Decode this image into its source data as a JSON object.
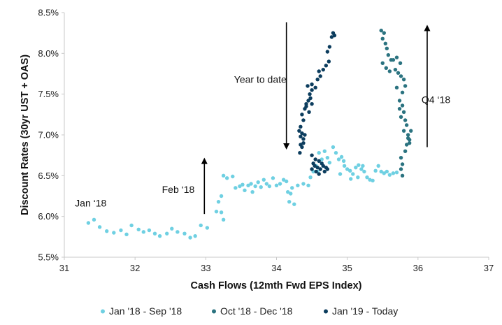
{
  "chart_data": {
    "type": "scatter",
    "title": "",
    "xlabel": "Cash Flows (12mth Fwd EPS Index)",
    "ylabel": "Discount Rates (30yr UST + OAS)",
    "xlim": [
      31,
      37
    ],
    "ylim": [
      5.5,
      8.5
    ],
    "x_ticks": [
      31,
      32,
      33,
      34,
      35,
      36,
      37
    ],
    "x_tick_labels": [
      "31",
      "32",
      "33",
      "34",
      "35",
      "36",
      "37"
    ],
    "y_ticks": [
      5.5,
      6.0,
      6.5,
      7.0,
      7.5,
      8.0,
      8.5
    ],
    "y_tick_labels": [
      "5.5%",
      "6.0%",
      "6.5%",
      "7.0%",
      "7.5%",
      "8.0%",
      "8.5%"
    ],
    "grid": false,
    "legend_position": "bottom",
    "series": [
      {
        "name": "Jan '18 - Sep '18",
        "color": "#6fd0e2",
        "points": [
          [
            31.34,
            5.92
          ],
          [
            31.42,
            5.96
          ],
          [
            31.5,
            5.87
          ],
          [
            31.6,
            5.82
          ],
          [
            31.7,
            5.8
          ],
          [
            31.8,
            5.83
          ],
          [
            31.88,
            5.78
          ],
          [
            31.95,
            5.89
          ],
          [
            32.05,
            5.84
          ],
          [
            32.12,
            5.81
          ],
          [
            32.2,
            5.83
          ],
          [
            32.28,
            5.79
          ],
          [
            32.35,
            5.76
          ],
          [
            32.45,
            5.79
          ],
          [
            32.52,
            5.85
          ],
          [
            32.6,
            5.81
          ],
          [
            32.7,
            5.79
          ],
          [
            32.78,
            5.74
          ],
          [
            32.85,
            5.76
          ],
          [
            32.93,
            5.89
          ],
          [
            33.02,
            5.86
          ],
          [
            33.15,
            6.06
          ],
          [
            33.22,
            6.05
          ],
          [
            33.25,
            5.96
          ],
          [
            33.18,
            6.18
          ],
          [
            33.22,
            6.25
          ],
          [
            33.25,
            6.5
          ],
          [
            33.3,
            6.47
          ],
          [
            33.38,
            6.49
          ],
          [
            33.42,
            6.35
          ],
          [
            33.48,
            6.37
          ],
          [
            33.52,
            6.39
          ],
          [
            33.55,
            6.32
          ],
          [
            33.6,
            6.38
          ],
          [
            33.64,
            6.4
          ],
          [
            33.66,
            6.3
          ],
          [
            33.7,
            6.37
          ],
          [
            33.74,
            6.42
          ],
          [
            33.78,
            6.36
          ],
          [
            33.82,
            6.45
          ],
          [
            33.86,
            6.4
          ],
          [
            33.9,
            6.37
          ],
          [
            33.95,
            6.47
          ],
          [
            34.0,
            6.38
          ],
          [
            34.05,
            6.4
          ],
          [
            34.1,
            6.45
          ],
          [
            34.14,
            6.43
          ],
          [
            34.16,
            6.3
          ],
          [
            34.18,
            6.18
          ],
          [
            34.2,
            6.28
          ],
          [
            34.22,
            6.35
          ],
          [
            34.25,
            6.15
          ],
          [
            34.3,
            6.38
          ],
          [
            34.38,
            6.4
          ],
          [
            34.45,
            6.38
          ],
          [
            34.48,
            6.48
          ],
          [
            34.52,
            6.55
          ],
          [
            34.56,
            6.62
          ],
          [
            34.6,
            6.78
          ],
          [
            34.64,
            6.7
          ],
          [
            34.68,
            6.8
          ],
          [
            34.72,
            6.72
          ],
          [
            34.75,
            6.66
          ],
          [
            34.8,
            6.85
          ],
          [
            34.84,
            6.78
          ],
          [
            34.88,
            6.7
          ],
          [
            34.92,
            6.73
          ],
          [
            34.96,
            6.62
          ],
          [
            35.0,
            6.58
          ],
          [
            35.04,
            6.56
          ],
          [
            35.08,
            6.52
          ],
          [
            35.12,
            6.6
          ],
          [
            35.16,
            6.63
          ],
          [
            35.2,
            6.58
          ],
          [
            35.24,
            6.55
          ],
          [
            35.28,
            6.48
          ],
          [
            35.32,
            6.45
          ],
          [
            35.36,
            6.44
          ],
          [
            35.4,
            6.56
          ],
          [
            35.44,
            6.62
          ],
          [
            35.48,
            6.55
          ],
          [
            35.52,
            6.53
          ],
          [
            35.56,
            6.55
          ],
          [
            35.6,
            6.51
          ],
          [
            35.65,
            6.53
          ],
          [
            35.7,
            6.54
          ],
          [
            34.9,
            6.52
          ],
          [
            34.95,
            6.68
          ],
          [
            35.05,
            6.46
          ],
          [
            35.15,
            6.48
          ],
          [
            35.22,
            6.62
          ],
          [
            34.58,
            6.55
          ]
        ]
      },
      {
        "name": "Oct '18 - Dec '18",
        "color": "#2b7380",
        "points": [
          [
            35.48,
            8.28
          ],
          [
            35.52,
            8.25
          ],
          [
            35.5,
            8.18
          ],
          [
            35.54,
            8.12
          ],
          [
            35.56,
            8.06
          ],
          [
            35.58,
            7.98
          ],
          [
            35.62,
            7.92
          ],
          [
            35.5,
            7.88
          ],
          [
            35.55,
            7.82
          ],
          [
            35.6,
            7.78
          ],
          [
            35.65,
            7.92
          ],
          [
            35.7,
            7.95
          ],
          [
            35.68,
            7.8
          ],
          [
            35.75,
            7.88
          ],
          [
            35.72,
            7.76
          ],
          [
            35.76,
            7.72
          ],
          [
            35.8,
            7.68
          ],
          [
            35.82,
            7.6
          ],
          [
            35.78,
            7.52
          ],
          [
            35.74,
            7.42
          ],
          [
            35.78,
            7.36
          ],
          [
            35.8,
            7.28
          ],
          [
            35.76,
            7.22
          ],
          [
            35.82,
            7.18
          ],
          [
            35.84,
            7.12
          ],
          [
            35.8,
            7.05
          ],
          [
            35.86,
            7.0
          ],
          [
            35.88,
            6.94
          ],
          [
            35.84,
            6.88
          ],
          [
            35.82,
            6.8
          ],
          [
            35.76,
            6.72
          ],
          [
            35.78,
            6.64
          ],
          [
            35.76,
            6.58
          ],
          [
            35.78,
            6.5
          ],
          [
            35.9,
            7.05
          ],
          [
            35.88,
            6.9
          ],
          [
            35.86,
            6.96
          ],
          [
            35.74,
            7.32
          ],
          [
            35.7,
            7.58
          ]
        ]
      },
      {
        "name": "Jan '19 - Today",
        "color": "#0c3d5e",
        "points": [
          [
            34.32,
            7.05
          ],
          [
            34.34,
            6.98
          ],
          [
            34.36,
            7.02
          ],
          [
            34.38,
            6.95
          ],
          [
            34.34,
            6.88
          ],
          [
            34.36,
            6.85
          ],
          [
            34.38,
            6.9
          ],
          [
            34.33,
            6.78
          ],
          [
            34.4,
            7.0
          ],
          [
            34.34,
            7.1
          ],
          [
            34.38,
            7.18
          ],
          [
            34.36,
            7.25
          ],
          [
            34.4,
            7.32
          ],
          [
            34.42,
            7.38
          ],
          [
            34.45,
            7.42
          ],
          [
            34.48,
            7.45
          ],
          [
            34.42,
            7.35
          ],
          [
            34.5,
            7.38
          ],
          [
            34.47,
            7.5
          ],
          [
            34.44,
            7.6
          ],
          [
            34.5,
            7.62
          ],
          [
            34.55,
            7.58
          ],
          [
            34.58,
            7.68
          ],
          [
            34.62,
            7.72
          ],
          [
            34.6,
            7.78
          ],
          [
            34.66,
            7.8
          ],
          [
            34.7,
            7.85
          ],
          [
            34.74,
            7.9
          ],
          [
            34.72,
            8.02
          ],
          [
            34.75,
            8.08
          ],
          [
            34.78,
            8.2
          ],
          [
            34.8,
            8.25
          ],
          [
            34.82,
            8.22
          ],
          [
            34.5,
            6.58
          ],
          [
            34.52,
            6.65
          ],
          [
            34.54,
            6.62
          ],
          [
            34.56,
            6.55
          ],
          [
            34.58,
            6.6
          ],
          [
            34.6,
            6.52
          ],
          [
            34.62,
            6.58
          ],
          [
            34.64,
            6.65
          ],
          [
            34.66,
            6.62
          ],
          [
            34.68,
            6.55
          ],
          [
            34.7,
            6.6
          ],
          [
            34.72,
            6.58
          ],
          [
            34.55,
            6.7
          ],
          [
            34.6,
            6.68
          ],
          [
            34.5,
            6.75
          ],
          [
            34.46,
            7.28
          ],
          [
            34.5,
            7.55
          ]
        ]
      }
    ],
    "annotations": [
      {
        "text": "Jan ‘18",
        "x": 31.15,
        "y": 6.12,
        "anchor": "start"
      },
      {
        "text": "Feb ‘18",
        "x": 32.38,
        "y": 6.29,
        "anchor": "start"
      },
      {
        "text": "Year to date",
        "x": 33.4,
        "y": 7.64,
        "anchor": "start"
      },
      {
        "text": "Q4 ‘18",
        "x": 36.05,
        "y": 7.39,
        "anchor": "start"
      }
    ],
    "arrows": [
      {
        "x": 32.98,
        "y_from": 6.03,
        "y_to": 6.72
      },
      {
        "x": 34.14,
        "y_from": 8.38,
        "y_to": 6.82
      },
      {
        "x": 36.13,
        "y_from": 6.85,
        "y_to": 8.35
      }
    ]
  }
}
